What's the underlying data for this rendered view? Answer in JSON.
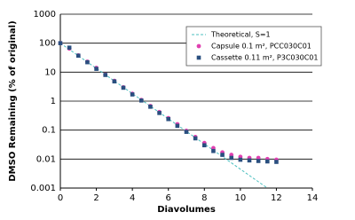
{
  "chart_data": {
    "type": "scatter",
    "xlabel": "Diavolumes",
    "ylabel": "DMSO  Remaining (% of original)",
    "xlim": [
      0,
      14
    ],
    "xticks": [
      0,
      2,
      4,
      6,
      8,
      10,
      12,
      14
    ],
    "ylim": [
      0.001,
      1000
    ],
    "yticks": [
      0.001,
      0.01,
      0.1,
      1,
      10,
      100,
      1000
    ],
    "log_y": true,
    "grid": true,
    "legend": "upper right",
    "series": [
      {
        "name": "Theoretical, S=1",
        "color": "#4bbfbf",
        "style": "dashed-line",
        "x": [
          0,
          11.5
        ],
        "values": [
          100,
          0.001
        ]
      },
      {
        "name": "Capsule 0.1 m², PCC030C01",
        "color": "#e040b0",
        "style": "circle",
        "x": [
          0,
          0.5,
          1,
          1.5,
          2,
          2.5,
          3,
          3.5,
          4,
          4.5,
          5,
          5.5,
          6,
          6.5,
          7,
          7.5,
          8,
          8.5,
          9,
          9.5,
          10,
          10.5,
          11,
          11.5,
          12
        ],
        "values": [
          100,
          65,
          38,
          23,
          14,
          8.2,
          5.0,
          3.0,
          1.8,
          1.1,
          0.68,
          0.42,
          0.26,
          0.16,
          0.095,
          0.058,
          0.036,
          0.024,
          0.017,
          0.014,
          0.012,
          0.011,
          0.011,
          0.01,
          0.0095
        ]
      },
      {
        "name": "Cassette 0.11 m², P3C030C01",
        "color": "#2a4f7f",
        "style": "square",
        "x": [
          0,
          0.5,
          1,
          1.5,
          2,
          2.5,
          3,
          3.5,
          4,
          4.5,
          5,
          5.5,
          6,
          6.5,
          7,
          7.5,
          8,
          8.5,
          9,
          9.5,
          10,
          10.5,
          11,
          11.5,
          12
        ],
        "values": [
          100,
          70,
          37,
          22,
          13,
          8.0,
          4.8,
          2.9,
          1.7,
          1.05,
          0.64,
          0.39,
          0.24,
          0.14,
          0.087,
          0.052,
          0.03,
          0.019,
          0.014,
          0.011,
          0.0095,
          0.009,
          0.0086,
          0.0083,
          0.008
        ]
      }
    ]
  }
}
